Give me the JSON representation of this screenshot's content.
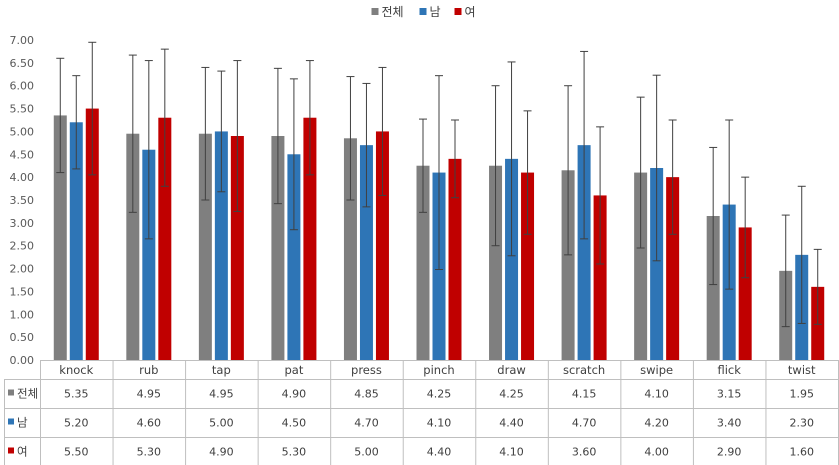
{
  "chart_data": {
    "type": "bar",
    "categories": [
      "knock",
      "rub",
      "tap",
      "pat",
      "press",
      "pinch",
      "draw",
      "scratch",
      "swipe",
      "flick",
      "twist"
    ],
    "series": [
      {
        "name": "전체",
        "color": "#7f7f7f",
        "values": [
          5.35,
          4.95,
          4.95,
          4.9,
          4.85,
          4.25,
          4.25,
          4.15,
          4.1,
          3.15,
          1.95
        ],
        "labels": [
          "5.35",
          "4.95",
          "4.95",
          "4.90",
          "4.85",
          "4.25",
          "4.25",
          "4.15",
          "4.10",
          "3.15",
          "1.95"
        ],
        "errors": [
          1.25,
          1.72,
          1.45,
          1.48,
          1.35,
          1.02,
          1.75,
          1.85,
          1.65,
          1.5,
          1.22
        ]
      },
      {
        "name": "남",
        "color": "#2e75b6",
        "values": [
          5.2,
          4.6,
          5.0,
          4.5,
          4.7,
          4.1,
          4.4,
          4.7,
          4.2,
          3.4,
          2.3
        ],
        "labels": [
          "5.20",
          "4.60",
          "5.00",
          "4.50",
          "4.70",
          "4.10",
          "4.40",
          "4.70",
          "4.20",
          "3.40",
          "2.30"
        ],
        "errors": [
          1.02,
          1.95,
          1.32,
          1.65,
          1.35,
          2.12,
          2.12,
          2.05,
          2.03,
          1.85,
          1.5
        ]
      },
      {
        "name": "여",
        "color": "#c00000",
        "values": [
          5.5,
          5.3,
          4.9,
          5.3,
          5.0,
          4.4,
          4.1,
          3.6,
          4.0,
          2.9,
          1.6
        ],
        "labels": [
          "5.50",
          "5.30",
          "4.90",
          "5.30",
          "5.00",
          "4.40",
          "4.10",
          "3.60",
          "4.00",
          "2.90",
          "1.60"
        ],
        "errors": [
          1.45,
          1.5,
          1.65,
          1.25,
          1.4,
          0.85,
          1.35,
          1.5,
          1.25,
          1.1,
          0.82
        ]
      }
    ],
    "yticks": [
      "0.00",
      "0.50",
      "1.00",
      "1.50",
      "2.00",
      "2.50",
      "3.00",
      "3.50",
      "4.00",
      "4.50",
      "5.00",
      "5.50",
      "6.00",
      "6.50",
      "7.00"
    ],
    "ylim": [
      0,
      7
    ],
    "title": "",
    "xlabel": "",
    "ylabel": "",
    "legend": "top-center",
    "data_table": true,
    "grid": false
  }
}
